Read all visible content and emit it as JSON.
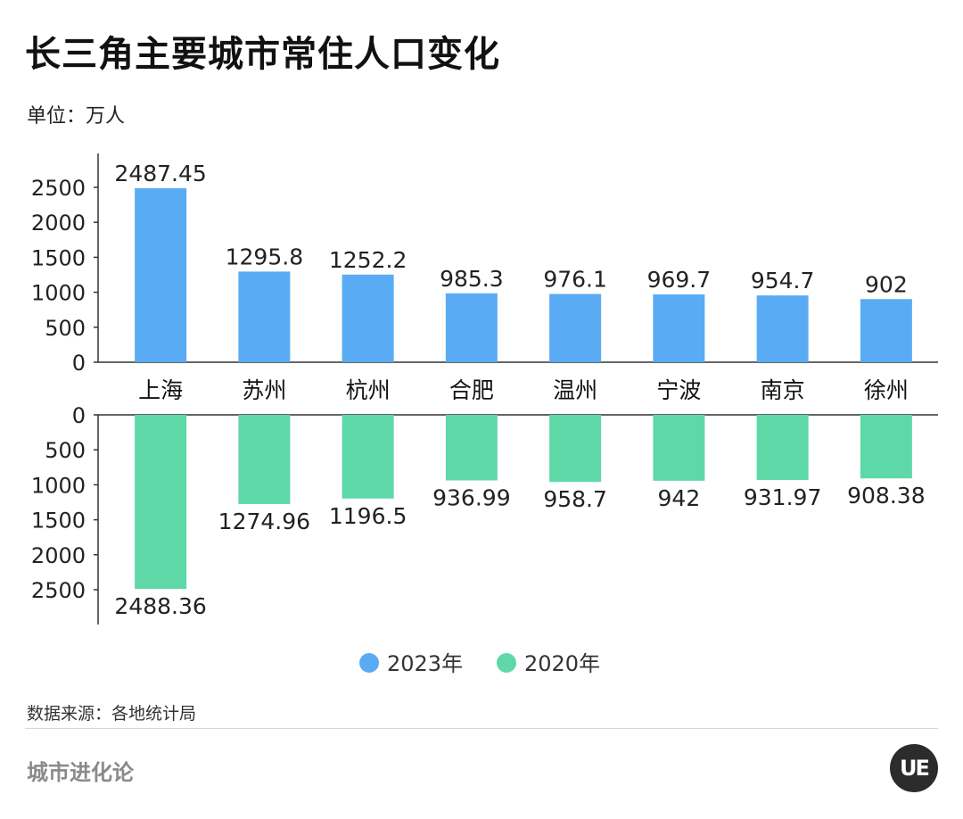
{
  "title": "长三角主要城市常住人口变化",
  "unit_label": "单位：万人",
  "source": "数据来源：各地统计局",
  "brand": "城市进化论",
  "logo_text": "UE",
  "colors": {
    "series_2023": "#59acf3",
    "series_2020": "#5fd8a8",
    "axis": "#333333"
  },
  "chart_data": {
    "type": "bar",
    "layout": "butterfly-vertical",
    "categories": [
      "上海",
      "苏州",
      "杭州",
      "合肥",
      "温州",
      "宁波",
      "南京",
      "徐州"
    ],
    "series": [
      {
        "name": "2023年",
        "values": [
          2487.45,
          1295.8,
          1252.2,
          985.3,
          976.1,
          969.7,
          954.7,
          902
        ],
        "labels": [
          "2487.45",
          "1295.8",
          "1252.2",
          "985.3",
          "976.1",
          "969.7",
          "954.7",
          "902"
        ],
        "color": "#59acf3",
        "direction": "up"
      },
      {
        "name": "2020年",
        "values": [
          2488.36,
          1274.96,
          1196.5,
          936.99,
          958.7,
          942,
          931.97,
          908.38
        ],
        "labels": [
          "2488.36",
          "1274.96",
          "1196.5",
          "936.99",
          "958.7",
          "942",
          "931.97",
          "908.38"
        ],
        "color": "#5fd8a8",
        "direction": "down"
      }
    ],
    "ylim": [
      0,
      2500
    ],
    "yticks": [
      0,
      500,
      1000,
      1500,
      2000,
      2500
    ],
    "grid": false,
    "legend": "bottom"
  }
}
